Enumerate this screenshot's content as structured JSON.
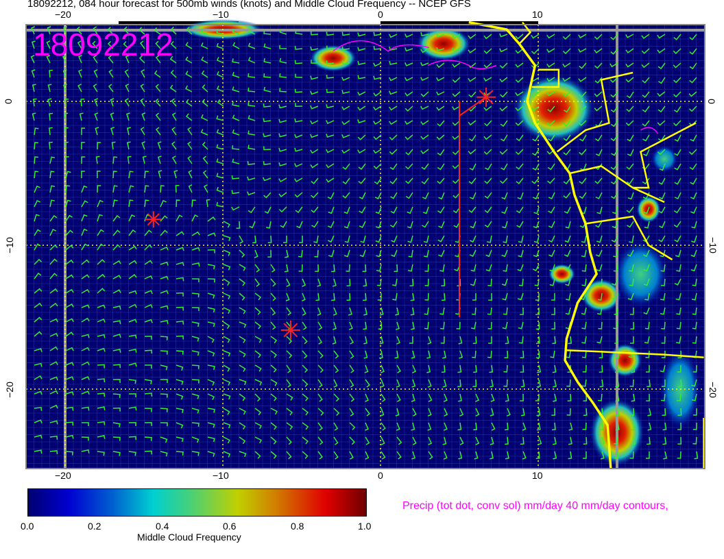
{
  "title": "18092212, 084 hour forecast for 500mb winds (knots) and Middle Cloud Frequency -- NCEP GFS",
  "map_label": "18092212",
  "x_ticks": [
    "−20",
    "−10",
    "0",
    "10"
  ],
  "y_ticks": [
    "0",
    "−10",
    "−20"
  ],
  "colorbar": {
    "title": "Middle Cloud Frequency",
    "ticks": [
      "0.0",
      "0.2",
      "0.4",
      "0.6",
      "0.8",
      "1.0"
    ],
    "colors": [
      "#000070",
      "#0000d0",
      "#00d0d0",
      "#c0d000",
      "#e00000",
      "#700000"
    ]
  },
  "precip_label": "Precip (tot dot, conv sol) mm/day 40 mm/day contours,",
  "colors": {
    "wind_barbs": "#33ee33",
    "coastline": "#ffff00",
    "ocean": "#000080",
    "precip": "#ff00ff",
    "markers": "#ff2020"
  }
}
